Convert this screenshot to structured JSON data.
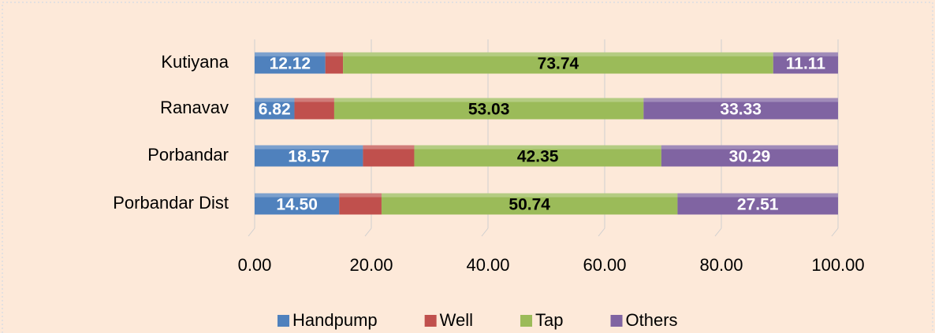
{
  "chart_data": {
    "type": "stacked-bar-horizontal",
    "categories": [
      "Kutiyana",
      "Ranavav",
      "Porbandar",
      "Porbandar Dist"
    ],
    "series": [
      {
        "name": "Handpump",
        "color": "#4f81bd",
        "values": [
          12.12,
          6.82,
          18.57,
          14.5
        ],
        "value_labels": [
          "12.12",
          "6.82",
          "18.57",
          "14.50"
        ]
      },
      {
        "name": "Well",
        "color": "#c0504d",
        "values": [
          3.03,
          6.82,
          8.79,
          7.25
        ]
      },
      {
        "name": "Tap",
        "color": "#9bbb59",
        "values": [
          73.74,
          53.03,
          42.35,
          50.74
        ],
        "value_labels": [
          "73.74",
          "53.03",
          "42.35",
          "50.74"
        ]
      },
      {
        "name": "Others",
        "color": "#8064a2",
        "values": [
          11.11,
          33.33,
          30.29,
          27.51
        ],
        "value_labels": [
          "11.11",
          "33.33",
          "30.29",
          "27.51"
        ]
      }
    ],
    "xlim": [
      0,
      100
    ],
    "xticks": [
      {
        "value": 0,
        "label": "0.00"
      },
      {
        "value": 20,
        "label": "20.00"
      },
      {
        "value": 40,
        "label": "40.00"
      },
      {
        "value": 60,
        "label": "60.00"
      },
      {
        "value": 80,
        "label": "80.00"
      },
      {
        "value": 100,
        "label": "100.00"
      }
    ],
    "grid": true,
    "legend": "bottom"
  }
}
